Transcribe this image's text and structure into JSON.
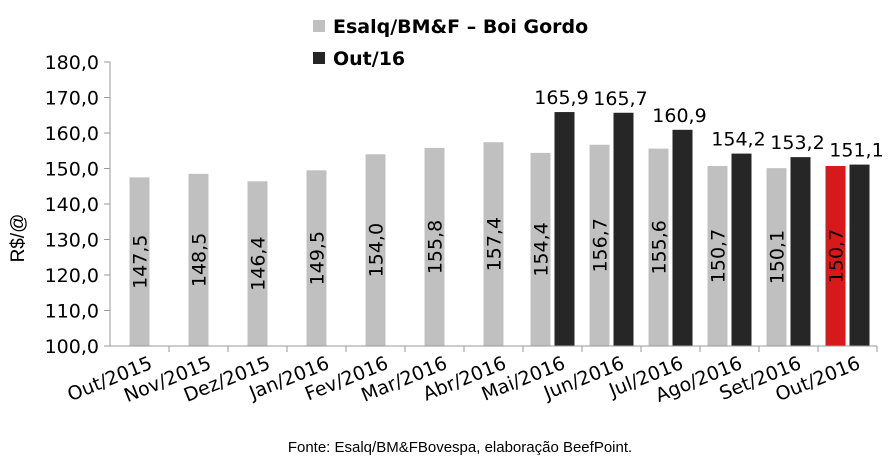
{
  "chart_data": {
    "type": "bar",
    "categories": [
      "Out/2015",
      "Nov/2015",
      "Dez/2015",
      "Jan/2016",
      "Fev/2016",
      "Mar/2016",
      "Abr/2016",
      "Mai/2016",
      "Jun/2016",
      "Jul/2016",
      "Ago/2016",
      "Set/2016",
      "Out/2016"
    ],
    "series": [
      {
        "name": "Esalq/BM&F – Boi Gordo",
        "color": "#c0c0c0",
        "values": [
          147.5,
          148.5,
          146.4,
          149.5,
          154.0,
          155.8,
          157.4,
          154.4,
          156.7,
          155.6,
          150.7,
          150.1,
          150.7
        ],
        "labels": [
          "147,5",
          "148,5",
          "146,4",
          "149,5",
          "154,0",
          "155,8",
          "157,4",
          "154,4",
          "156,7",
          "155,6",
          "150,7",
          "150,1",
          "150,7"
        ],
        "highlight": {
          "index": 12,
          "color": "#d7191c"
        }
      },
      {
        "name": "Out/16",
        "color": "#262626",
        "values": [
          null,
          null,
          null,
          null,
          null,
          null,
          null,
          165.9,
          165.7,
          160.9,
          154.2,
          153.2,
          151.1
        ],
        "labels": [
          "",
          "",
          "",
          "",
          "",
          "",
          "",
          "165,9",
          "165,7",
          "160,9",
          "154,2",
          "153,2",
          "151,1"
        ]
      }
    ],
    "ylabel": "R$/@",
    "ylim": [
      100,
      180
    ],
    "yticks": [
      "100,0",
      "110,0",
      "120,0",
      "130,0",
      "140,0",
      "150,0",
      "160,0",
      "170,0",
      "180,0"
    ],
    "legend_position": "top-center",
    "source": "Fonte: Esalq/BM&FBovespa, elaboração BeefPoint."
  }
}
